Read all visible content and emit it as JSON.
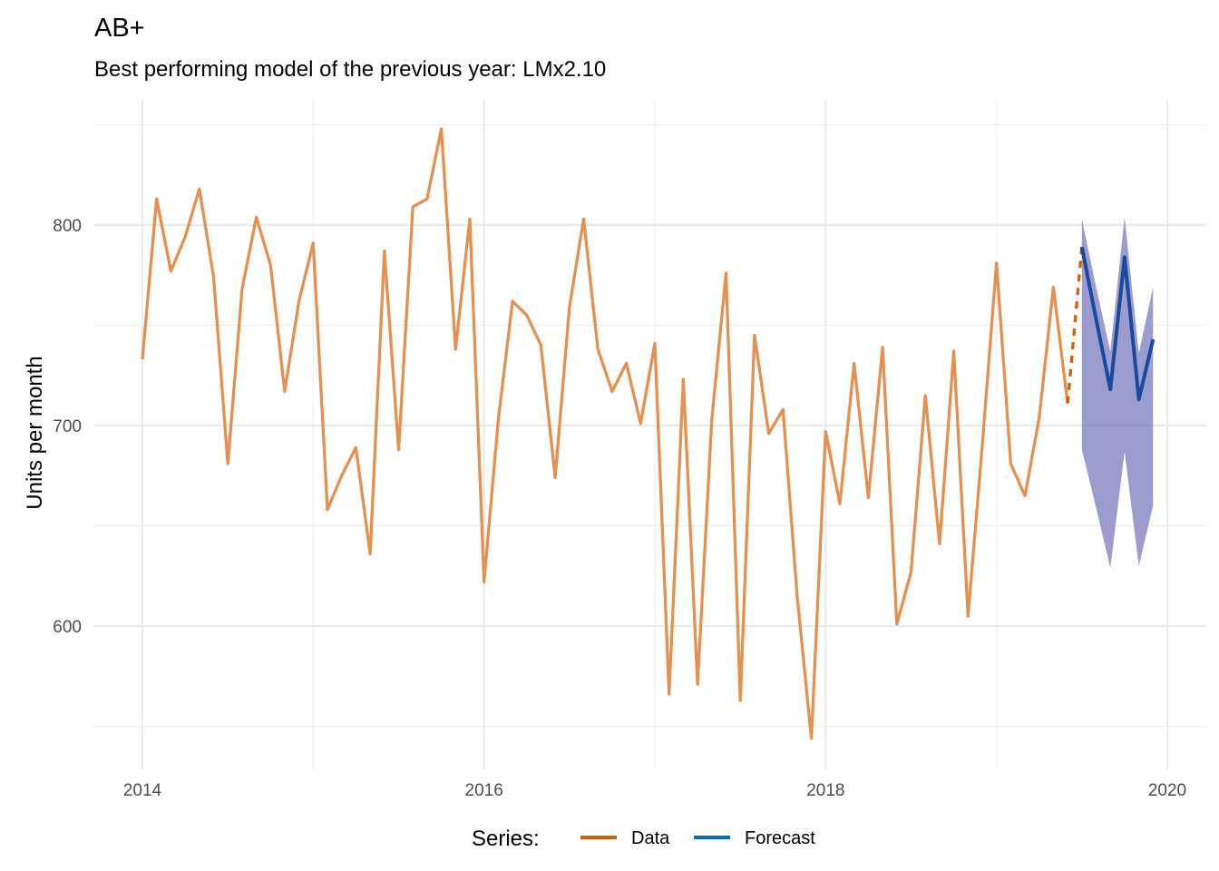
{
  "chart_data": {
    "type": "line",
    "title": "AB+",
    "subtitle": "Best performing model of the previous year: LMx2.10",
    "xlabel": "",
    "ylabel": "Units per month",
    "xlim": [
      2013.92,
      2020.3
    ],
    "ylim": [
      550,
      850
    ],
    "x_ticks": [
      2014,
      2016,
      2018,
      2020
    ],
    "x_tick_labels": [
      "2014",
      "2016",
      "2018",
      "2020"
    ],
    "y_ticks": [
      600,
      700,
      800
    ],
    "y_tick_labels": [
      "600",
      "700",
      "800"
    ],
    "grid": true,
    "legend": {
      "position": "bottom",
      "title": "Series:",
      "entries": [
        {
          "label": "Data",
          "color": "#d55e00"
        },
        {
          "label": "Forecast",
          "color": "#0072b2"
        }
      ]
    },
    "series": [
      {
        "name": "Data",
        "color": "#e69050",
        "start": "2014-01",
        "values": [
          733,
          813,
          777,
          794,
          818,
          774,
          681,
          768,
          804,
          780,
          717,
          762,
          791,
          658,
          675,
          689,
          636,
          787,
          688,
          809,
          813,
          848,
          738,
          803,
          622,
          703,
          762,
          755,
          740,
          674,
          759,
          803,
          738,
          717,
          731,
          701,
          741,
          566,
          723,
          571,
          703,
          776,
          563,
          745,
          696,
          708,
          615,
          544,
          697,
          661,
          731,
          664,
          739,
          601,
          627,
          715,
          641,
          737,
          605,
          690,
          781,
          681,
          665,
          704,
          769,
          711
        ]
      },
      {
        "name": "Data",
        "style": "dashed",
        "color": "#d55e00",
        "start": "2019-06",
        "values": [
          711,
          789
        ]
      },
      {
        "name": "Forecast",
        "color": "#1a4a9e",
        "start": "2019-07",
        "values": [
          789,
          753,
          718,
          784,
          713,
          743
        ]
      }
    ],
    "forecast_interval": {
      "color": "#7b7bbf",
      "start": "2019-07",
      "upper": [
        803,
        769,
        737,
        804,
        736,
        769
      ],
      "lower": [
        688,
        659,
        629,
        687,
        630,
        660
      ]
    }
  }
}
